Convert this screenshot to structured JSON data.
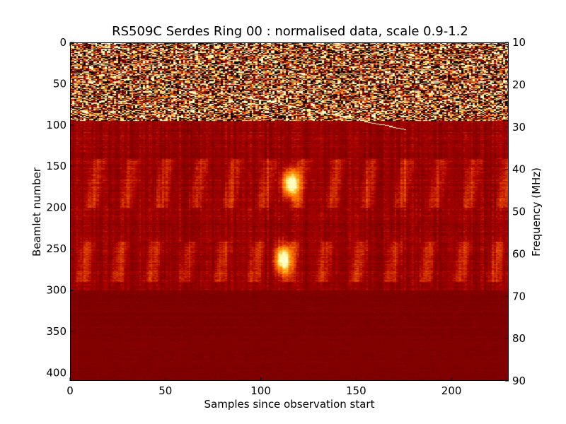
{
  "chart_data": {
    "type": "heatmap",
    "title": "RS509C Serdes Ring 00 : normalised data, scale 0.9-1.2",
    "xlabel": "Samples since observation start",
    "ylabel": "Beamlet number",
    "y2label": "Frequency (MHz)",
    "xlim": [
      0,
      230
    ],
    "ylim": [
      410,
      0
    ],
    "y2lim": [
      90,
      10
    ],
    "color_scale": [
      0.9,
      1.2
    ],
    "colormap": "heat",
    "xticks": [
      0,
      50,
      100,
      150,
      200
    ],
    "yticks": [
      0,
      50,
      100,
      150,
      200,
      250,
      300,
      350,
      400
    ],
    "y2ticks": [
      10,
      20,
      30,
      40,
      50,
      60,
      70,
      80,
      90
    ],
    "regions": [
      {
        "beamlets": [
          0,
          95
        ],
        "level": "saturated noise"
      },
      {
        "beamlets": [
          95,
          300
        ],
        "level": "variable"
      },
      {
        "beamlets": [
          300,
          410
        ],
        "level": "quiet"
      }
    ],
    "bright_features": [
      {
        "sample": 115,
        "beamlet": 170,
        "value": 1.2
      },
      {
        "sample": 111,
        "beamlet": 262,
        "value": 1.2
      }
    ]
  }
}
